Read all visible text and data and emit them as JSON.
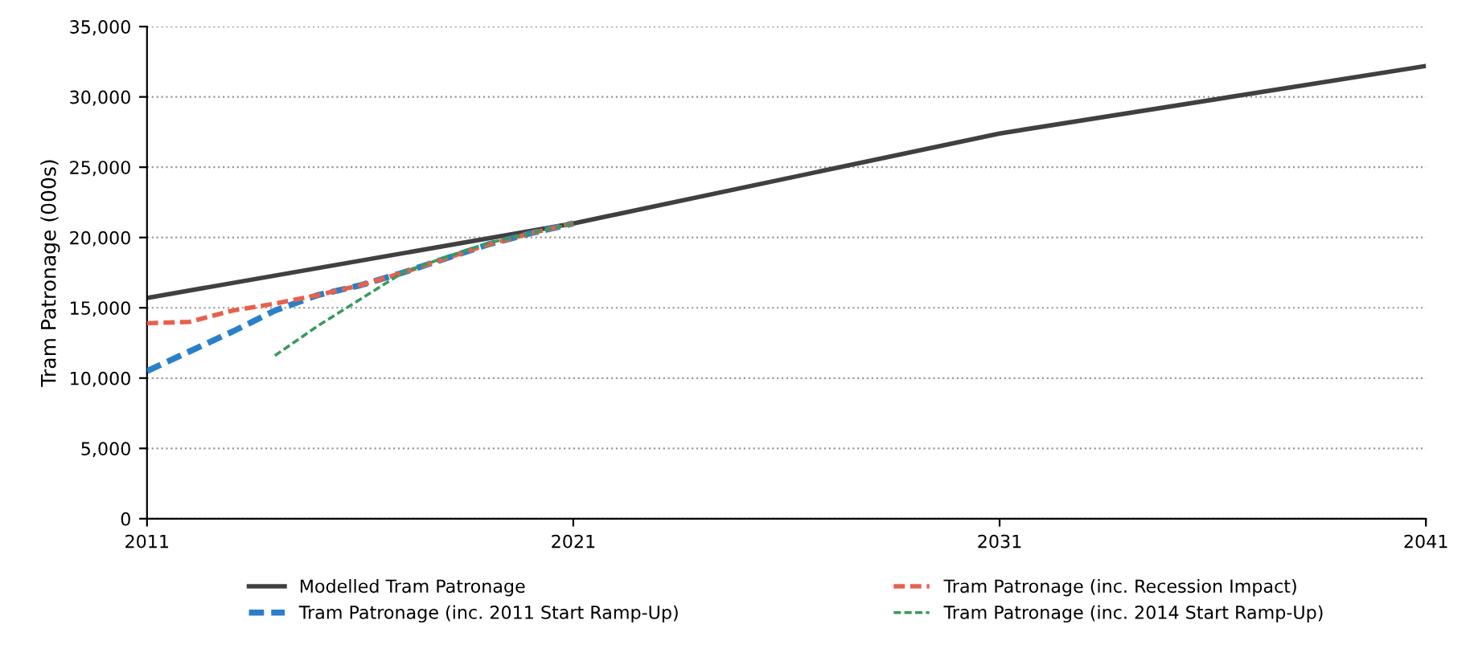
{
  "chart_data": {
    "type": "line",
    "ylabel": "Tram Patronage (000s)",
    "xlim": [
      2011,
      2041
    ],
    "xticks": [
      2011,
      2021,
      2031,
      2041
    ],
    "ylim": [
      0,
      35000
    ],
    "yticks": [
      {
        "value": 0,
        "label": "0"
      },
      {
        "value": 5000,
        "label": "5,000"
      },
      {
        "value": 10000,
        "label": "10,000"
      },
      {
        "value": 15000,
        "label": "15,000"
      },
      {
        "value": 20000,
        "label": "20,000"
      },
      {
        "value": 25000,
        "label": "25,000"
      },
      {
        "value": 30000,
        "label": "30,000"
      },
      {
        "value": 35000,
        "label": "35,000"
      }
    ],
    "grid": "y",
    "legend": "bottom",
    "marker": "none",
    "series": [
      {
        "name": "Modelled Tram Patronage",
        "color": "#404040",
        "line_style": "solid",
        "x": [
          2011,
          2021,
          2031,
          2041
        ],
        "values": [
          15700,
          21000,
          27400,
          32200
        ]
      },
      {
        "name": "Tram Patronage (inc. 2011 Start Ramp-Up)",
        "color": "#2a7fc9",
        "line_style": "dashed",
        "x": [
          2011,
          2012,
          2013,
          2014,
          2015,
          2016,
          2017,
          2018,
          2019,
          2020,
          2021
        ],
        "values": [
          10500,
          11900,
          13300,
          14800,
          15900,
          16600,
          17500,
          18500,
          19500,
          20300,
          21000
        ]
      },
      {
        "name": "Tram Patronage (inc. Recession Impact)",
        "color": "#e8604c",
        "line_style": "dashed",
        "x": [
          2011,
          2012,
          2013,
          2014,
          2015,
          2016,
          2017,
          2018,
          2019,
          2020,
          2021
        ],
        "values": [
          13900,
          14000,
          14800,
          15300,
          15900,
          16600,
          17500,
          18500,
          19500,
          20300,
          21000
        ]
      },
      {
        "name": "Tram Patronage (inc. 2014 Start Ramp-Up)",
        "color": "#3a9a5a",
        "line_style": "dashed",
        "x": [
          2014,
          2015,
          2016,
          2017,
          2018,
          2019,
          2020,
          2021
        ],
        "values": [
          11600,
          13700,
          15600,
          17500,
          18600,
          19600,
          20300,
          21000
        ]
      }
    ]
  }
}
